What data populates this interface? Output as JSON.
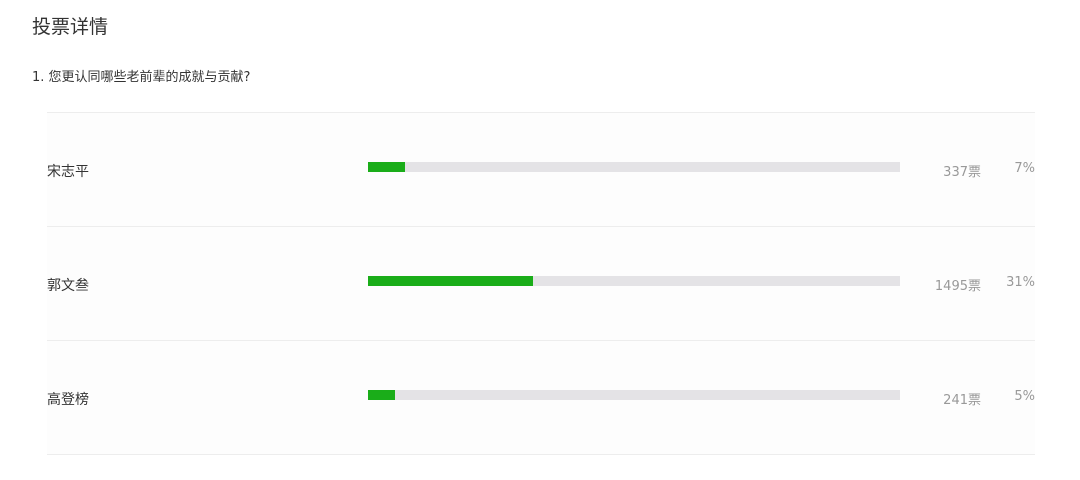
{
  "page": {
    "title": "投票详情"
  },
  "question": {
    "text": "1. 您更认同哪些老前辈的成就与贡献?"
  },
  "colors": {
    "bar_fill": "#1aad19",
    "bar_track": "#e4e3e6"
  },
  "options": [
    {
      "name": "宋志平",
      "votes": "337票",
      "percent_label": "7%",
      "percent": 7
    },
    {
      "name": "郭文叁",
      "votes": "1495票",
      "percent_label": "31%",
      "percent": 31
    },
    {
      "name": "高登榜",
      "votes": "241票",
      "percent_label": "5%",
      "percent": 5
    }
  ]
}
